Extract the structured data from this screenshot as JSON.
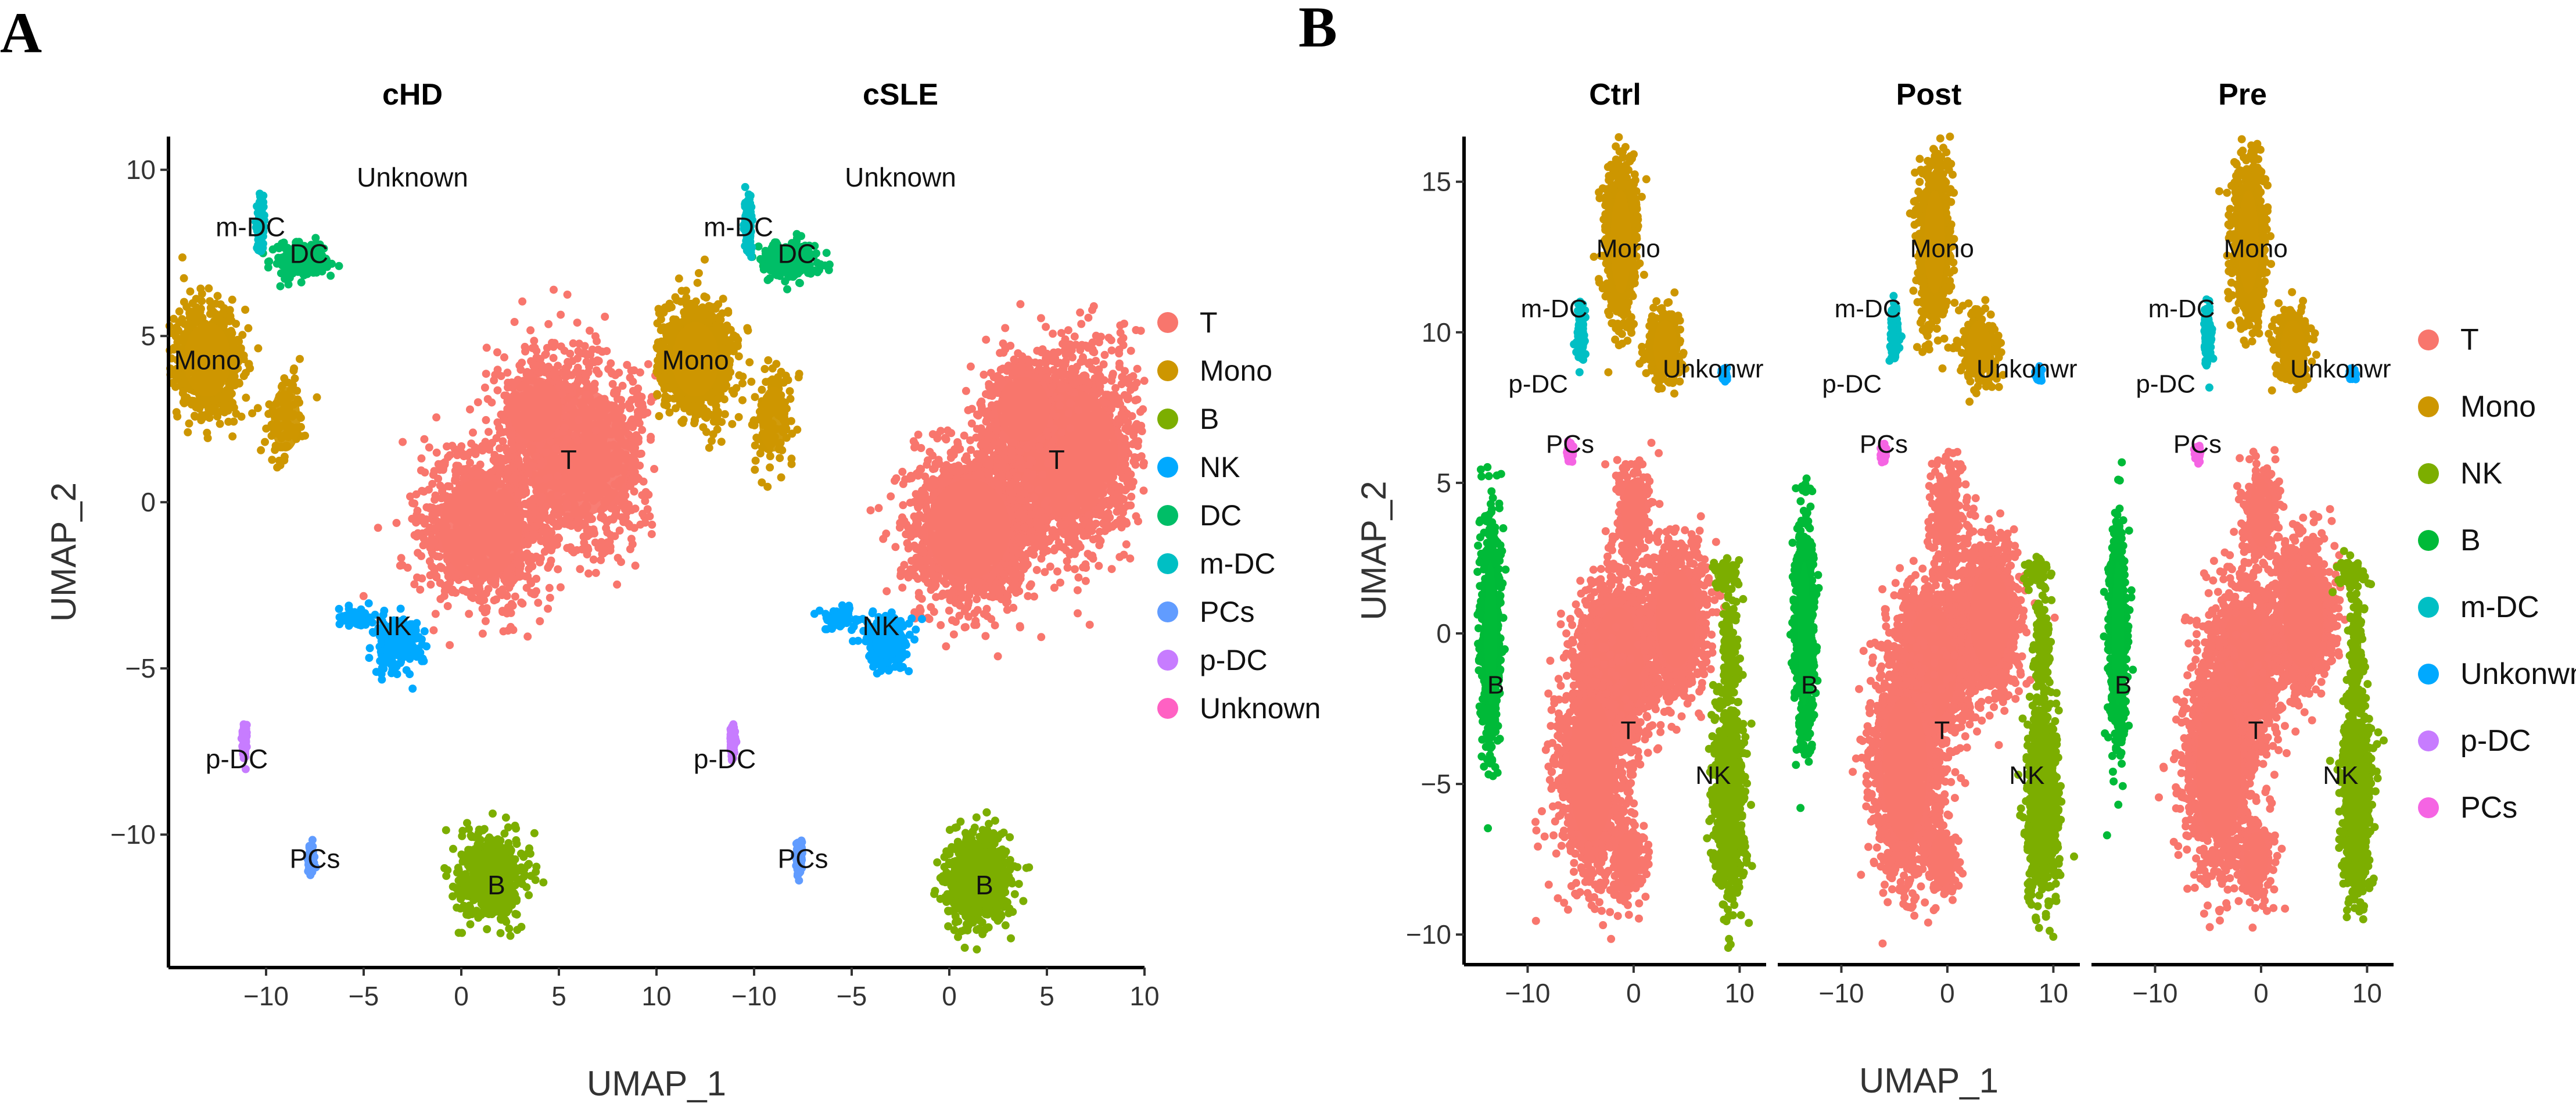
{
  "panels": [
    {
      "letter": "A",
      "xlabel": "UMAP_1",
      "ylabel": "UMAP_2",
      "xlim": [
        -15,
        10
      ],
      "ylim": [
        -14,
        11
      ],
      "xticks": [
        -10,
        -5,
        0,
        5,
        10
      ],
      "yticks": [
        -10,
        -5,
        0,
        5,
        10
      ],
      "facets": [
        {
          "title": "cHD",
          "density": 1.0
        },
        {
          "title": "cSLE",
          "density": 1.5
        }
      ],
      "clusters": [
        {
          "name": "T",
          "color": "#F8766D",
          "label": "T",
          "label_at": [
            5.5,
            1
          ],
          "blobs": [
            [
              6,
              1.5,
              3.5,
              2.6,
              1
            ],
            [
              1,
              -0.8,
              2.8,
              2.0,
              0.8
            ],
            [
              3.8,
              2.8,
              1.8,
              1.3,
              0.4
            ]
          ]
        },
        {
          "name": "Mono",
          "color": "#CD9600",
          "label": "Mono",
          "label_at": [
            -13,
            4
          ],
          "blobs": [
            [
              -13,
              4.3,
              1.6,
              1.5,
              1
            ],
            [
              -9,
              2.5,
              1.0,
              1.3,
              0.25
            ]
          ]
        },
        {
          "name": "B",
          "color": "#7CAE00",
          "label": "B",
          "label_at": [
            1.8,
            -11.8
          ],
          "blobs": [
            [
              1.5,
              -11.3,
              1.5,
              1.2,
              1
            ]
          ]
        },
        {
          "name": "NK",
          "color": "#00A9FF",
          "label": "NK",
          "label_at": [
            -3.5,
            -4
          ],
          "blobs": [
            [
              -3.2,
              -4.2,
              1.0,
              0.7,
              1
            ],
            [
              -5.5,
              -3.5,
              0.8,
              0.3,
              0.3
            ]
          ]
        },
        {
          "name": "DC",
          "color": "#00BE67",
          "label": "DC",
          "label_at": [
            -7.8,
            7.2
          ],
          "blobs": [
            [
              -8.2,
              7.3,
              1.3,
              0.5,
              1
            ]
          ]
        },
        {
          "name": "m-DC",
          "color": "#00BFC4",
          "label": "m-DC",
          "label_at": [
            -10.8,
            8
          ],
          "blobs": [
            [
              -10.3,
              8.4,
              0.15,
              0.7,
              1
            ]
          ]
        },
        {
          "name": "PCs",
          "color": "#619CFF",
          "label": "PCs",
          "label_at": [
            -7.5,
            -11
          ],
          "blobs": [
            [
              -7.7,
              -10.7,
              0.12,
              0.4,
              1
            ]
          ]
        },
        {
          "name": "p-DC",
          "color": "#C77CFF",
          "label": "p-DC",
          "label_at": [
            -11.5,
            -8
          ],
          "blobs": [
            [
              -11.1,
              -7.2,
              0.1,
              0.4,
              1
            ]
          ]
        },
        {
          "name": "Unknown",
          "color": "#FF61C3",
          "label": "Unknown",
          "label_at": [
            -2.5,
            9.5
          ],
          "blobs": []
        }
      ],
      "legend": [
        "T",
        "Mono",
        "B",
        "NK",
        "DC",
        "m-DC",
        "PCs",
        "p-DC",
        "Unknown"
      ]
    },
    {
      "letter": "B",
      "xlabel": "UMAP_1",
      "ylabel": "UMAP_2",
      "xlim": [
        -16,
        12.5
      ],
      "ylim": [
        -11,
        16.5
      ],
      "xticks": [
        -10,
        0,
        10
      ],
      "yticks": [
        -10,
        -5,
        0,
        5,
        10,
        15
      ],
      "facets": [
        {
          "title": "Ctrl",
          "density": 1.0
        },
        {
          "title": "Post",
          "density": 1.0
        },
        {
          "title": "Pre",
          "density": 1.0
        }
      ],
      "clusters": [
        {
          "name": "T",
          "color": "#F8766D",
          "label": "T",
          "label_at": [
            -0.5,
            -3.5
          ],
          "blobs": [
            [
              -1.5,
              -1,
              3.2,
              2.5,
              1
            ],
            [
              -4,
              -4.5,
              2.8,
              3.2,
              1
            ],
            [
              0,
              4,
              1.5,
              1.5,
              0.4
            ],
            [
              4,
              0.5,
              2.5,
              2.2,
              0.8
            ],
            [
              -0.5,
              -7.5,
              1.5,
              1.2,
              0.35
            ]
          ]
        },
        {
          "name": "Mono",
          "color": "#CD9600",
          "label": "Mono",
          "label_at": [
            -0.5,
            12.5
          ],
          "blobs": [
            [
              -1.2,
              13,
              1.3,
              2.3,
              1
            ],
            [
              3,
              9.5,
              1.5,
              1.2,
              0.5
            ]
          ]
        },
        {
          "name": "NK",
          "color": "#7CAE00",
          "label": "NK",
          "label_at": [
            7.5,
            -5
          ],
          "blobs": [
            [
              9,
              -5.5,
              1.2,
              2.8,
              1
            ],
            [
              9,
              -0.5,
              0.6,
              1.8,
              0.4
            ],
            [
              8.5,
              2,
              1.2,
              0.5,
              0.25
            ]
          ]
        },
        {
          "name": "B",
          "color": "#00BA38",
          "label": "B",
          "label_at": [
            -13,
            -2
          ],
          "blobs": [
            [
              -13.5,
              0,
              0.8,
              3.2,
              1
            ]
          ]
        },
        {
          "name": "m-DC",
          "color": "#00BFC4",
          "label": "m-DC",
          "label_at": [
            -7.5,
            10.5
          ],
          "blobs": [
            [
              -5,
              10,
              0.3,
              0.8,
              1
            ]
          ]
        },
        {
          "name": "Unkonwn",
          "color": "#00A9FF",
          "label": "Unkonwr",
          "label_at": [
            7.5,
            8.5
          ],
          "blobs": [
            [
              8.6,
              8.6,
              0.2,
              0.15,
              1
            ]
          ]
        },
        {
          "name": "p-DC",
          "color": "#C77CFF",
          "label": "p-DC",
          "label_at": [
            -9,
            8
          ],
          "blobs": []
        },
        {
          "name": "PCs",
          "color": "#F564E3",
          "label": "PCs",
          "label_at": [
            -6,
            6
          ],
          "blobs": [
            [
              -6,
              6,
              0.2,
              0.2,
              1
            ]
          ]
        }
      ],
      "legend": [
        "T",
        "Mono",
        "NK",
        "B",
        "m-DC",
        "Unkonwn",
        "p-DC",
        "PCs"
      ]
    }
  ]
}
